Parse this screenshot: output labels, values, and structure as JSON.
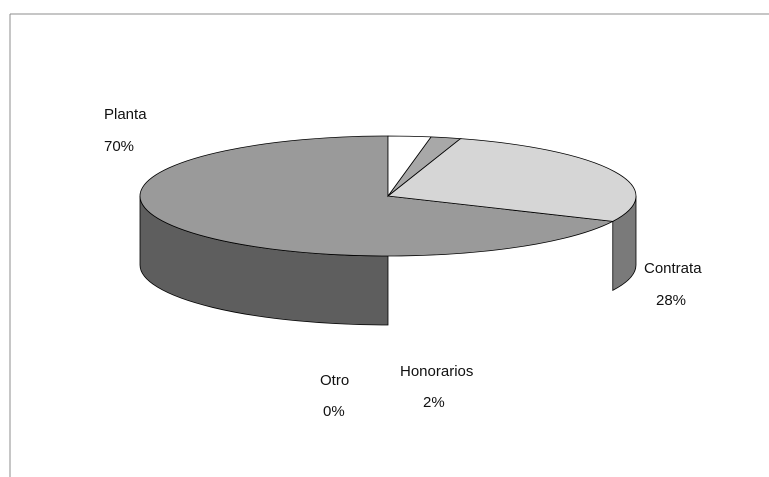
{
  "chart_data": {
    "type": "pie",
    "style": "3d",
    "categories": [
      "Planta",
      "Contrata",
      "Honorarios",
      "Otro"
    ],
    "values": [
      70,
      28,
      2,
      0
    ],
    "labels": [
      {
        "name": "Planta",
        "percent": "70%"
      },
      {
        "name": "Contrata",
        "percent": "28%"
      },
      {
        "name": "Honorarios",
        "percent": "2%"
      },
      {
        "name": "Otro",
        "percent": "0%"
      }
    ],
    "title": "",
    "legend": "none",
    "colors": {
      "Planta": "#9a9a9a",
      "Contrata": "#d6d6d6",
      "Honorarios": "#a8a8a8",
      "Otro": "#ffffff",
      "planta_side": "#5e5e5e",
      "contrata_side": "#7a7a7a",
      "frame": "#8c8c8c"
    }
  }
}
